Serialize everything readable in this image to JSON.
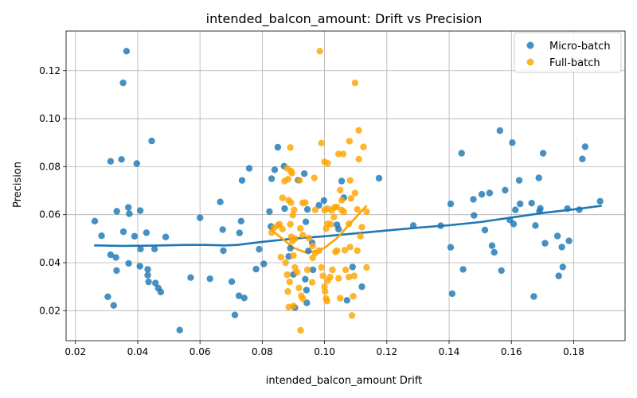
{
  "chart_data": {
    "type": "scatter",
    "title": "intended_balcon_amount: Drift vs Precision",
    "xlabel": "intended_balcon_amount Drift",
    "ylabel": "Precision",
    "xlim": [
      0.017,
      0.1965
    ],
    "ylim": [
      0.0075,
      0.1365
    ],
    "xticks": [
      "0.02",
      "0.04",
      "0.06",
      "0.08",
      "0.10",
      "0.12",
      "0.14",
      "0.16",
      "0.18"
    ],
    "xtick_values": [
      0.02,
      0.04,
      0.06,
      0.08,
      0.1,
      0.12,
      0.14,
      0.16,
      0.18
    ],
    "yticks": [
      "0.02",
      "0.04",
      "0.06",
      "0.08",
      "0.10",
      "0.12"
    ],
    "ytick_values": [
      0.02,
      0.04,
      0.06,
      0.08,
      0.1,
      0.12
    ],
    "grid": true,
    "legend_position": "top-right",
    "colors": {
      "micro": "#1f77b4",
      "full": "#ffa500"
    },
    "series": [
      {
        "name": "Micro-batch",
        "points": [
          [
            0.0364,
            0.1281
          ],
          [
            0.0353,
            0.1149
          ],
          [
            0.0445,
            0.0907
          ],
          [
            0.0313,
            0.0822
          ],
          [
            0.0348,
            0.083
          ],
          [
            0.0397,
            0.0813
          ],
          [
            0.0262,
            0.0573
          ],
          [
            0.0333,
            0.0614
          ],
          [
            0.037,
            0.063
          ],
          [
            0.0373,
            0.0604
          ],
          [
            0.0408,
            0.0617
          ],
          [
            0.0284,
            0.0512
          ],
          [
            0.0354,
            0.0529
          ],
          [
            0.039,
            0.051
          ],
          [
            0.0428,
            0.0525
          ],
          [
            0.0409,
            0.0457
          ],
          [
            0.0454,
            0.0457
          ],
          [
            0.049,
            0.0507
          ],
          [
            0.0313,
            0.0433
          ],
          [
            0.033,
            0.0422
          ],
          [
            0.0371,
            0.0397
          ],
          [
            0.0407,
            0.0385
          ],
          [
            0.0432,
            0.0372
          ],
          [
            0.0332,
            0.0367
          ],
          [
            0.0432,
            0.0348
          ],
          [
            0.0435,
            0.032
          ],
          [
            0.0457,
            0.0315
          ],
          [
            0.0466,
            0.0294
          ],
          [
            0.0474,
            0.0278
          ],
          [
            0.0304,
            0.0258
          ],
          [
            0.0323,
            0.0222
          ],
          [
            0.0535,
            0.0119
          ],
          [
            0.057,
            0.0338
          ],
          [
            0.06,
            0.0587
          ],
          [
            0.0632,
            0.0333
          ],
          [
            0.0665,
            0.0653
          ],
          [
            0.0673,
            0.0538
          ],
          [
            0.0675,
            0.045
          ],
          [
            0.0702,
            0.0321
          ],
          [
            0.0712,
            0.0182
          ],
          [
            0.0725,
            0.0262
          ],
          [
            0.0727,
            0.0524
          ],
          [
            0.0732,
            0.0573
          ],
          [
            0.0735,
            0.0743
          ],
          [
            0.0742,
            0.0253
          ],
          [
            0.0758,
            0.0793
          ],
          [
            0.078,
            0.0373
          ],
          [
            0.079,
            0.0456
          ],
          [
            0.0805,
            0.0395
          ],
          [
            0.0823,
            0.0613
          ],
          [
            0.0828,
            0.0551
          ],
          [
            0.083,
            0.075
          ],
          [
            0.084,
            0.0787
          ],
          [
            0.085,
            0.0881
          ],
          [
            0.087,
            0.0802
          ],
          [
            0.0872,
            0.0625
          ],
          [
            0.0885,
            0.0426
          ],
          [
            0.089,
            0.046
          ],
          [
            0.09,
            0.0351
          ],
          [
            0.0905,
            0.0213
          ],
          [
            0.0915,
            0.0744
          ],
          [
            0.0935,
            0.0771
          ],
          [
            0.0945,
            0.0622
          ],
          [
            0.094,
            0.057
          ],
          [
            0.0938,
            0.0331
          ],
          [
            0.0942,
            0.0286
          ],
          [
            0.0943,
            0.0233
          ],
          [
            0.0948,
            0.0449
          ],
          [
            0.096,
            0.0483
          ],
          [
            0.0963,
            0.037
          ],
          [
            0.0982,
            0.0639
          ],
          [
            0.0998,
            0.0659
          ],
          [
            0.104,
            0.0558
          ],
          [
            0.1045,
            0.054
          ],
          [
            0.1055,
            0.074
          ],
          [
            0.1062,
            0.0671
          ],
          [
            0.1072,
            0.0243
          ],
          [
            0.109,
            0.0382
          ],
          [
            0.112,
            0.03
          ],
          [
            0.1175,
            0.0752
          ],
          [
            0.1285,
            0.0555
          ],
          [
            0.1373,
            0.0554
          ],
          [
            0.1405,
            0.0645
          ],
          [
            0.1405,
            0.0464
          ],
          [
            0.141,
            0.0271
          ],
          [
            0.144,
            0.0856
          ],
          [
            0.1445,
            0.0372
          ],
          [
            0.1478,
            0.0664
          ],
          [
            0.148,
            0.0597
          ],
          [
            0.1505,
            0.0685
          ],
          [
            0.1515,
            0.0536
          ],
          [
            0.153,
            0.069
          ],
          [
            0.1538,
            0.0471
          ],
          [
            0.1545,
            0.0443
          ],
          [
            0.1563,
            0.095
          ],
          [
            0.1568,
            0.0367
          ],
          [
            0.158,
            0.0702
          ],
          [
            0.1595,
            0.0578
          ],
          [
            0.1603,
            0.09
          ],
          [
            0.1607,
            0.0561
          ],
          [
            0.1613,
            0.062
          ],
          [
            0.1625,
            0.0743
          ],
          [
            0.1628,
            0.0645
          ],
          [
            0.1665,
            0.0648
          ],
          [
            0.1672,
            0.0259
          ],
          [
            0.1677,
            0.0555
          ],
          [
            0.1688,
            0.0753
          ],
          [
            0.169,
            0.0614
          ],
          [
            0.1693,
            0.0626
          ],
          [
            0.1702,
            0.0856
          ],
          [
            0.1708,
            0.0481
          ],
          [
            0.1748,
            0.0511
          ],
          [
            0.1752,
            0.0345
          ],
          [
            0.1762,
            0.0465
          ],
          [
            0.1765,
            0.0382
          ],
          [
            0.178,
            0.0625
          ],
          [
            0.1785,
            0.0491
          ],
          [
            0.1818,
            0.0621
          ],
          [
            0.1828,
            0.0832
          ],
          [
            0.1837,
            0.0883
          ],
          [
            0.1885,
            0.0656
          ]
        ]
      },
      {
        "name": "Full-batch",
        "points": [
          [
            0.0985,
            0.1281
          ],
          [
            0.1098,
            0.1149
          ],
          [
            0.111,
            0.0951
          ],
          [
            0.108,
            0.0906
          ],
          [
            0.1125,
            0.0882
          ],
          [
            0.089,
            0.088
          ],
          [
            0.099,
            0.0898
          ],
          [
            0.1045,
            0.0853
          ],
          [
            0.106,
            0.0853
          ],
          [
            0.1,
            0.082
          ],
          [
            0.101,
            0.0814
          ],
          [
            0.111,
            0.0831
          ],
          [
            0.088,
            0.0793
          ],
          [
            0.0892,
            0.0782
          ],
          [
            0.0895,
            0.0773
          ],
          [
            0.0872,
            0.074
          ],
          [
            0.0883,
            0.0748
          ],
          [
            0.092,
            0.0743
          ],
          [
            0.0967,
            0.0753
          ],
          [
            0.1082,
            0.0743
          ],
          [
            0.105,
            0.0702
          ],
          [
            0.1098,
            0.069
          ],
          [
            0.1085,
            0.0668
          ],
          [
            0.1055,
            0.066
          ],
          [
            0.104,
            0.0632
          ],
          [
            0.1,
            0.0619
          ],
          [
            0.101,
            0.0625
          ],
          [
            0.1022,
            0.0618
          ],
          [
            0.1032,
            0.063
          ],
          [
            0.1055,
            0.0619
          ],
          [
            0.1062,
            0.0612
          ],
          [
            0.1105,
            0.0622
          ],
          [
            0.1135,
            0.0613
          ],
          [
            0.0865,
            0.067
          ],
          [
            0.0885,
            0.066
          ],
          [
            0.0892,
            0.065
          ],
          [
            0.0902,
            0.062
          ],
          [
            0.0898,
            0.0598
          ],
          [
            0.093,
            0.0649
          ],
          [
            0.0938,
            0.065
          ],
          [
            0.097,
            0.062
          ],
          [
            0.085,
            0.0555
          ],
          [
            0.083,
            0.0525
          ],
          [
            0.0838,
            0.0545
          ],
          [
            0.0855,
            0.056
          ],
          [
            0.0865,
            0.054
          ],
          [
            0.089,
            0.056
          ],
          [
            0.0893,
            0.0508
          ],
          [
            0.0897,
            0.049
          ],
          [
            0.0905,
            0.05
          ],
          [
            0.0922,
            0.0543
          ],
          [
            0.093,
            0.0515
          ],
          [
            0.095,
            0.0502
          ],
          [
            0.0962,
            0.047
          ],
          [
            0.1005,
            0.0542
          ],
          [
            0.101,
            0.0562
          ],
          [
            0.102,
            0.056
          ],
          [
            0.103,
            0.059
          ],
          [
            0.1078,
            0.0562
          ],
          [
            0.112,
            0.0548
          ],
          [
            0.1115,
            0.051
          ],
          [
            0.086,
            0.0423
          ],
          [
            0.0875,
            0.04
          ],
          [
            0.088,
            0.035
          ],
          [
            0.0888,
            0.032
          ],
          [
            0.0882,
            0.028
          ],
          [
            0.09,
            0.043
          ],
          [
            0.0905,
            0.038
          ],
          [
            0.0912,
            0.036
          ],
          [
            0.0918,
            0.0295
          ],
          [
            0.0925,
            0.0262
          ],
          [
            0.093,
            0.025
          ],
          [
            0.0945,
            0.037
          ],
          [
            0.0962,
            0.042
          ],
          [
            0.097,
            0.044
          ],
          [
            0.0982,
            0.045
          ],
          [
            0.099,
            0.038
          ],
          [
            0.0995,
            0.0345
          ],
          [
            0.1,
            0.03
          ],
          [
            0.1002,
            0.028
          ],
          [
            0.1005,
            0.025
          ],
          [
            0.1008,
            0.024
          ],
          [
            0.101,
            0.0325
          ],
          [
            0.1018,
            0.034
          ],
          [
            0.1025,
            0.037
          ],
          [
            0.1035,
            0.0445
          ],
          [
            0.104,
            0.045
          ],
          [
            0.1045,
            0.0335
          ],
          [
            0.105,
            0.0252
          ],
          [
            0.1065,
            0.0452
          ],
          [
            0.1068,
            0.037
          ],
          [
            0.1078,
            0.034
          ],
          [
            0.1082,
            0.0465
          ],
          [
            0.1092,
            0.026
          ],
          [
            0.1095,
            0.0345
          ],
          [
            0.1105,
            0.045
          ],
          [
            0.1135,
            0.038
          ],
          [
            0.1088,
            0.018
          ],
          [
            0.0885,
            0.0215
          ],
          [
            0.09,
            0.022
          ],
          [
            0.0923,
            0.0118
          ],
          [
            0.096,
            0.0318
          ]
        ]
      }
    ],
    "trend_lines": [
      {
        "series": "Micro-batch",
        "points": [
          [
            0.026,
            0.0472
          ],
          [
            0.035,
            0.047
          ],
          [
            0.045,
            0.0471
          ],
          [
            0.055,
            0.0474
          ],
          [
            0.062,
            0.0474
          ],
          [
            0.068,
            0.0472
          ],
          [
            0.072,
            0.0474
          ],
          [
            0.08,
            0.0487
          ],
          [
            0.09,
            0.05
          ],
          [
            0.1,
            0.051
          ],
          [
            0.11,
            0.0522
          ],
          [
            0.12,
            0.0534
          ],
          [
            0.13,
            0.0546
          ],
          [
            0.14,
            0.0556
          ],
          [
            0.15,
            0.0569
          ],
          [
            0.16,
            0.0588
          ],
          [
            0.17,
            0.0607
          ],
          [
            0.18,
            0.0622
          ],
          [
            0.189,
            0.0637
          ]
        ]
      },
      {
        "series": "Full-batch",
        "points": [
          [
            0.0825,
            0.054
          ],
          [
            0.086,
            0.0505
          ],
          [
            0.09,
            0.0462
          ],
          [
            0.094,
            0.0442
          ],
          [
            0.098,
            0.045
          ],
          [
            0.1,
            0.0462
          ],
          [
            0.104,
            0.0502
          ],
          [
            0.108,
            0.056
          ],
          [
            0.1135,
            0.0638
          ]
        ]
      }
    ]
  }
}
